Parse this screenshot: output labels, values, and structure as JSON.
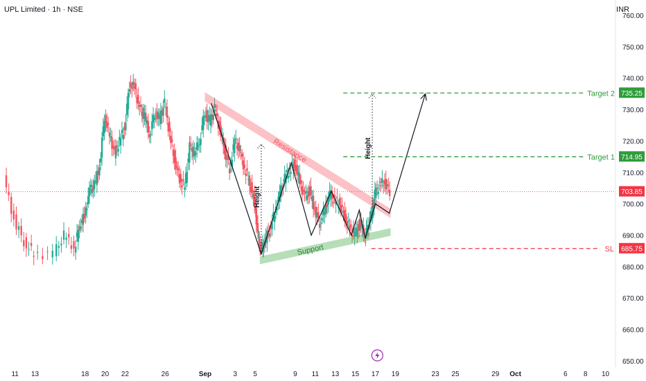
{
  "header": {
    "title": "UPL Limited · 1h · NSE",
    "currency": "INR"
  },
  "colors": {
    "up": "#22ab94",
    "down": "#f7525f",
    "resistance": "#f7525f",
    "support": "#4caf50",
    "target": "#2e9d3a",
    "sl": "#f23645",
    "current": "#f23645",
    "path": "#131722"
  },
  "chart_data": {
    "type": "candlestick",
    "interval": "1h",
    "ylim": [
      648,
      760
    ],
    "y_ticks": [
      650,
      660,
      670,
      680,
      690,
      700,
      710,
      720,
      730,
      740,
      750,
      760
    ],
    "y_tick_labels": [
      "650.00",
      "660.00",
      "670.00",
      "680.00",
      "690.00",
      "700.00",
      "710.00",
      "720.00",
      "730.00",
      "740.00",
      "750.00",
      "760.00"
    ],
    "x_ticks": [
      {
        "label": "11",
        "day": 11
      },
      {
        "label": "13",
        "day": 13
      },
      {
        "label": "18",
        "day": 18
      },
      {
        "label": "20",
        "day": 20
      },
      {
        "label": "22",
        "day": 22
      },
      {
        "label": "26",
        "day": 26
      },
      {
        "label": "Sep",
        "day": 30
      },
      {
        "label": "3",
        "day": 33
      },
      {
        "label": "5",
        "day": 35
      },
      {
        "label": "9",
        "day": 39
      },
      {
        "label": "11",
        "day": 41
      },
      {
        "label": "13",
        "day": 43
      },
      {
        "label": "15",
        "day": 45
      },
      {
        "label": "17",
        "day": 47
      },
      {
        "label": "19",
        "day": 49
      },
      {
        "label": "23",
        "day": 53
      },
      {
        "label": "25",
        "day": 55
      },
      {
        "label": "29",
        "day": 59
      },
      {
        "label": "Oct",
        "day": 61
      },
      {
        "label": "6",
        "day": 66
      },
      {
        "label": "8",
        "day": 68
      },
      {
        "label": "10",
        "day": 70
      }
    ],
    "price_path": [
      {
        "day": 10.0,
        "price": 708
      },
      {
        "day": 11.0,
        "price": 695
      },
      {
        "day": 12.0,
        "price": 688
      },
      {
        "day": 13.0,
        "price": 684
      },
      {
        "day": 15.0,
        "price": 684
      },
      {
        "day": 16.0,
        "price": 690
      },
      {
        "day": 17.0,
        "price": 686
      },
      {
        "day": 17.5,
        "price": 693
      },
      {
        "day": 18.0,
        "price": 696
      },
      {
        "day": 18.5,
        "price": 704
      },
      {
        "day": 19.0,
        "price": 706
      },
      {
        "day": 19.5,
        "price": 712
      },
      {
        "day": 20.0,
        "price": 728
      },
      {
        "day": 20.5,
        "price": 722
      },
      {
        "day": 21.0,
        "price": 716
      },
      {
        "day": 21.5,
        "price": 720
      },
      {
        "day": 22.0,
        "price": 724
      },
      {
        "day": 22.5,
        "price": 738
      },
      {
        "day": 23.0,
        "price": 737
      },
      {
        "day": 23.5,
        "price": 730
      },
      {
        "day": 24.0,
        "price": 728
      },
      {
        "day": 24.5,
        "price": 722
      },
      {
        "day": 25.0,
        "price": 729
      },
      {
        "day": 25.5,
        "price": 727
      },
      {
        "day": 26.0,
        "price": 732
      },
      {
        "day": 26.5,
        "price": 722
      },
      {
        "day": 27.0,
        "price": 714
      },
      {
        "day": 27.5,
        "price": 708
      },
      {
        "day": 28.0,
        "price": 705
      },
      {
        "day": 28.5,
        "price": 718
      },
      {
        "day": 29.0,
        "price": 716
      },
      {
        "day": 29.5,
        "price": 720
      },
      {
        "day": 30.0,
        "price": 729
      },
      {
        "day": 30.5,
        "price": 726
      },
      {
        "day": 31.0,
        "price": 730
      },
      {
        "day": 31.5,
        "price": 724
      },
      {
        "day": 32.0,
        "price": 717
      },
      {
        "day": 32.5,
        "price": 711
      },
      {
        "day": 33.0,
        "price": 720
      },
      {
        "day": 33.5,
        "price": 717
      },
      {
        "day": 34.0,
        "price": 711
      },
      {
        "day": 34.5,
        "price": 707
      },
      {
        "day": 35.0,
        "price": 700
      },
      {
        "day": 35.3,
        "price": 690
      },
      {
        "day": 35.6,
        "price": 685
      },
      {
        "day": 36.0,
        "price": 688
      },
      {
        "day": 36.5,
        "price": 692
      },
      {
        "day": 37.0,
        "price": 697
      },
      {
        "day": 37.5,
        "price": 703
      },
      {
        "day": 38.0,
        "price": 708
      },
      {
        "day": 38.5,
        "price": 711
      },
      {
        "day": 39.0,
        "price": 713
      },
      {
        "day": 39.5,
        "price": 707
      },
      {
        "day": 40.0,
        "price": 702
      },
      {
        "day": 40.5,
        "price": 704
      },
      {
        "day": 41.0,
        "price": 698
      },
      {
        "day": 41.5,
        "price": 694
      },
      {
        "day": 42.0,
        "price": 698
      },
      {
        "day": 42.5,
        "price": 703
      },
      {
        "day": 43.0,
        "price": 701
      },
      {
        "day": 43.5,
        "price": 700
      },
      {
        "day": 44.0,
        "price": 696
      },
      {
        "day": 44.5,
        "price": 692
      },
      {
        "day": 45.0,
        "price": 690
      },
      {
        "day": 45.5,
        "price": 694
      },
      {
        "day": 46.0,
        "price": 690
      },
      {
        "day": 46.3,
        "price": 693
      },
      {
        "day": 46.7,
        "price": 697
      },
      {
        "day": 47.0,
        "price": 703
      },
      {
        "day": 47.5,
        "price": 706
      },
      {
        "day": 48.0,
        "price": 707
      },
      {
        "day": 48.5,
        "price": 704
      }
    ],
    "current_price": {
      "label": "703.85",
      "price": 703.85
    },
    "levels": [
      {
        "name": "Target 2",
        "label": "735.25",
        "price": 735.25,
        "kind": "target"
      },
      {
        "name": "Target 1",
        "label": "714.95",
        "price": 714.95,
        "kind": "target"
      },
      {
        "name": "SL",
        "label": "685.75",
        "price": 685.75,
        "kind": "sl"
      }
    ],
    "resistance": {
      "label": "Resistance",
      "from": {
        "day": 30,
        "price": 734
      },
      "to": {
        "day": 48.5,
        "price": 697
      }
    },
    "support": {
      "label": "Support",
      "from": {
        "day": 35.5,
        "price": 682
      },
      "to": {
        "day": 48.5,
        "price": 691
      }
    },
    "zigzag": [
      {
        "day": 30.6,
        "price": 732
      },
      {
        "day": 35.6,
        "price": 684
      },
      {
        "day": 38.6,
        "price": 713
      },
      {
        "day": 40.6,
        "price": 690
      },
      {
        "day": 42.6,
        "price": 704
      },
      {
        "day": 44.6,
        "price": 690
      },
      {
        "day": 45.4,
        "price": 698
      },
      {
        "day": 46.0,
        "price": 689
      },
      {
        "day": 47.0,
        "price": 700
      },
      {
        "day": 48.4,
        "price": 697
      },
      {
        "day": 52.0,
        "price": 735
      }
    ],
    "height_markers": [
      {
        "label": "Height",
        "day": 35.6,
        "from": 684,
        "to": 719
      },
      {
        "label": "Height",
        "day": 46.7,
        "from": 699,
        "to": 735
      }
    ]
  }
}
